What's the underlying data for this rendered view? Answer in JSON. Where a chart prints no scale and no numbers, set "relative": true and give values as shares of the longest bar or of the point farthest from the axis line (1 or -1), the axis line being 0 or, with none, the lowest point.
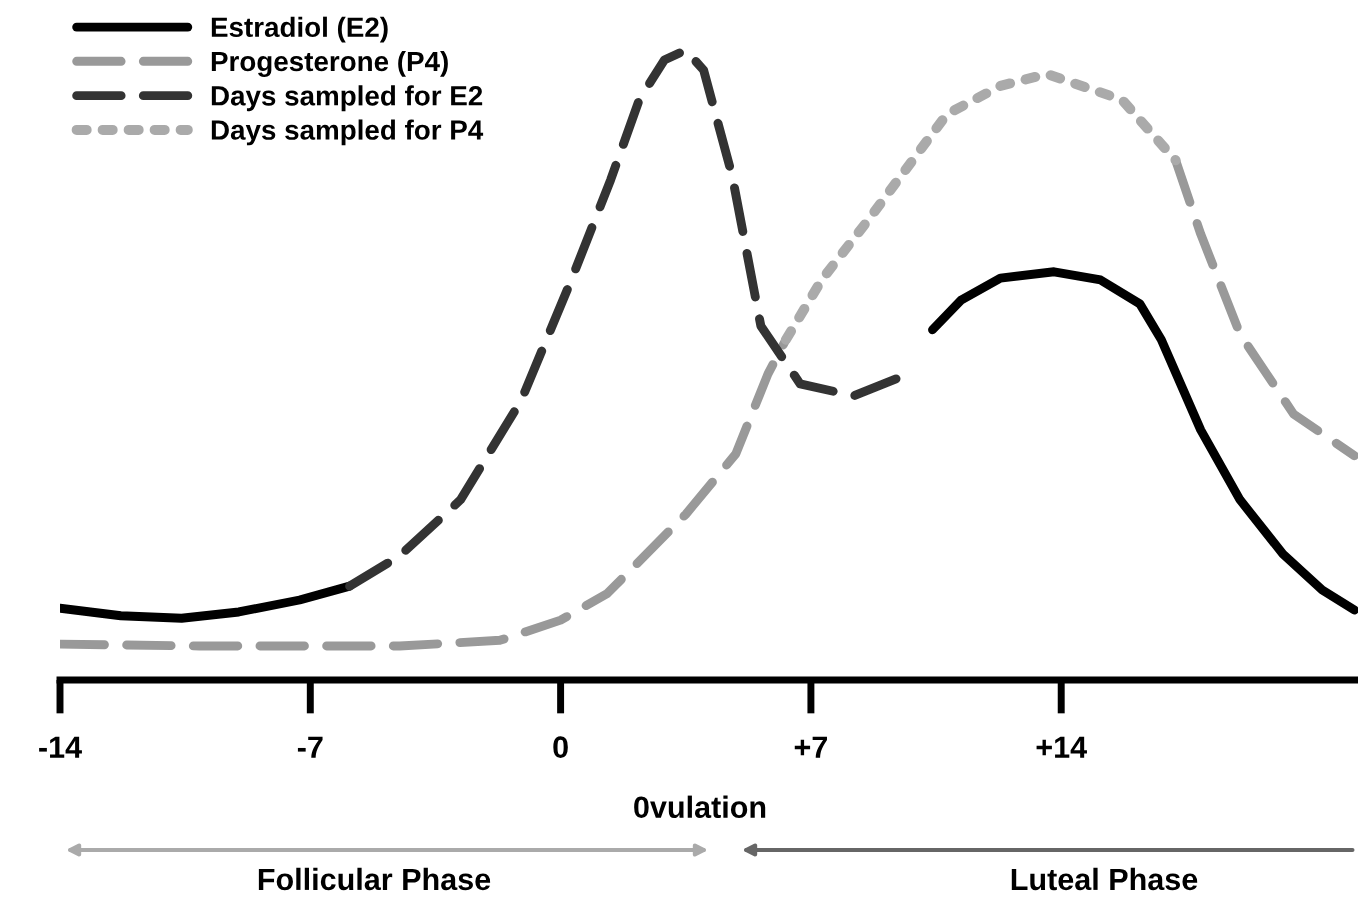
{
  "chart_data": {
    "type": "line",
    "relative": true,
    "xlim": [
      -14,
      22.3
    ],
    "xticks": [
      {
        "value": -14,
        "label": "-14"
      },
      {
        "value": -7,
        "label": "-7"
      },
      {
        "value": 0,
        "label": "0"
      },
      {
        "value": 7,
        "label": "+7"
      },
      {
        "value": 14,
        "label": "+14"
      }
    ],
    "xlabel": "0vulation",
    "legend": "top left",
    "grid": false,
    "marker": "none",
    "series": [
      {
        "name": "Estradiol (E2)",
        "color": "#000000",
        "line_style": "solid",
        "x": [
          -14,
          -12.3,
          -10.6,
          -9.0,
          -7.3,
          -5.9,
          8.0,
          10.4,
          11.2,
          12.3,
          13.8,
          15.1,
          16.2,
          16.8,
          17.9,
          19.0,
          20.2,
          21.3,
          22.2
        ],
        "values": [
          0.114,
          0.102,
          0.098,
          0.108,
          0.127,
          0.149,
          null,
          0.556,
          0.603,
          0.638,
          0.648,
          0.635,
          0.597,
          0.54,
          0.397,
          0.286,
          0.2,
          0.143,
          0.111
        ]
      },
      {
        "name": "Progesterone (P4)",
        "color": "#999999",
        "line_style": "dashed",
        "x": [
          -14,
          -10.1,
          -4.5,
          -1.7,
          0.0,
          1.3,
          3.5,
          4.9,
          5.8,
          6.3,
          12.0,
          17.2,
          17.9,
          19.0,
          20.5,
          22.2
        ],
        "values": [
          0.057,
          0.054,
          0.054,
          0.063,
          0.095,
          0.137,
          0.263,
          0.359,
          0.486,
          0.54,
          null,
          0.825,
          0.708,
          0.549,
          0.422,
          0.356
        ]
      },
      {
        "name": "Days sampled for E2",
        "color": "#333333",
        "line_style": "dashed",
        "x": [
          -5.9,
          -4.5,
          -2.8,
          -1.1,
          0.3,
          1.4,
          2.2,
          2.9,
          3.5,
          4.0,
          4.8,
          5.6,
          6.7,
          8.2,
          9.6
        ],
        "values": [
          0.149,
          0.197,
          0.286,
          0.444,
          0.635,
          0.794,
          0.921,
          0.984,
          1,
          0.968,
          0.8,
          0.562,
          0.47,
          0.451,
          0.483
        ]
      },
      {
        "name": "Days sampled for P4",
        "color": "#aaaaaa",
        "line_style": "dotted",
        "x": [
          6.3,
          7.3,
          8.6,
          10.8,
          12.3,
          13.6,
          15.7,
          17.2
        ],
        "values": [
          0.54,
          0.635,
          0.73,
          0.898,
          0.943,
          0.962,
          0.921,
          0.825
        ]
      }
    ],
    "annotations": [
      "Follicular Phase",
      "Luteal Phase"
    ]
  }
}
